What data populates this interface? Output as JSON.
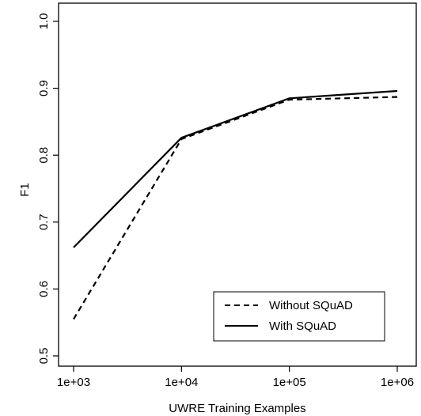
{
  "chart_data": {
    "type": "line",
    "title": "",
    "xlabel": "UWRE Training Examples",
    "ylabel": "F1",
    "x_scale": "log",
    "x": [
      1000,
      10000,
      100000,
      1000000
    ],
    "x_tick_labels": [
      "1e+03",
      "1e+04",
      "1e+05",
      "1e+06"
    ],
    "xlim": [
      1000,
      1000000
    ],
    "ylim": [
      0.5,
      1.0
    ],
    "y_ticks": [
      0.5,
      0.6,
      0.7,
      0.8,
      0.9,
      1.0
    ],
    "y_tick_labels": [
      "0.5",
      "0.6",
      "0.7",
      "0.8",
      "0.9",
      "1.0"
    ],
    "grid": false,
    "legend_position": "bottom-right",
    "series": [
      {
        "name": "Without SQuAD",
        "style": "dashed",
        "color": "#000000",
        "values": [
          0.555,
          0.824,
          0.883,
          0.887
        ]
      },
      {
        "name": "With SQuAD",
        "style": "solid",
        "color": "#000000",
        "values": [
          0.662,
          0.826,
          0.885,
          0.896
        ]
      }
    ]
  }
}
